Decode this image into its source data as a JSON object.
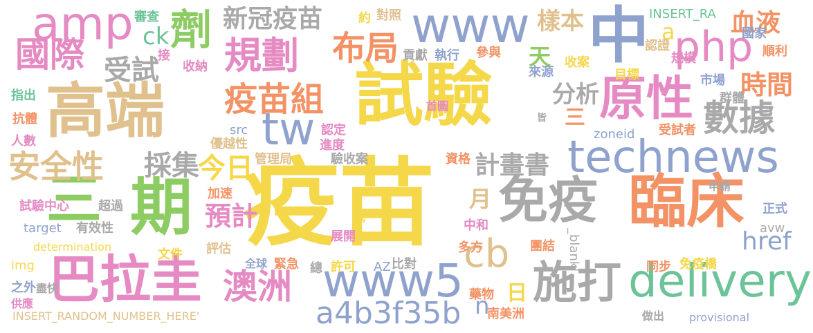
{
  "colors": {
    "yellow": "#f5d74a",
    "tan": "#e0c18e",
    "salmon": "#f39265",
    "green": "#8ccc62",
    "blue": "#8fa2cd",
    "pink": "#e58ac3",
    "gray": "#a9a9a9",
    "teal": "#6dc398"
  },
  "words": [
    {
      "text": "疫苗",
      "color": "yellow"
    },
    {
      "text": "試驗",
      "color": "yellow"
    },
    {
      "text": "高端",
      "color": "tan"
    },
    {
      "text": "臨床",
      "color": "salmon"
    },
    {
      "text": "免疫",
      "color": "gray"
    },
    {
      "text": "巴拉圭",
      "color": "pink"
    },
    {
      "text": "期",
      "color": "green"
    },
    {
      "text": "三",
      "color": "green"
    },
    {
      "text": "中",
      "color": "blue"
    },
    {
      "text": "原性",
      "color": "pink"
    },
    {
      "text": "technews",
      "color": "blue"
    },
    {
      "text": "施打",
      "color": "gray"
    },
    {
      "text": "delivery",
      "color": "teal"
    },
    {
      "text": "www5",
      "color": "blue"
    },
    {
      "text": "www",
      "color": "blue"
    },
    {
      "text": "amp",
      "color": "pink"
    },
    {
      "text": "php",
      "color": "pink"
    },
    {
      "text": "規劃",
      "color": "pink"
    },
    {
      "text": "劑",
      "color": "green"
    },
    {
      "text": "國際",
      "color": "pink"
    },
    {
      "text": "疫苗組",
      "color": "salmon"
    },
    {
      "text": "澳洲",
      "color": "pink"
    },
    {
      "text": "布局",
      "color": "salmon"
    },
    {
      "text": "安全性",
      "color": "tan"
    },
    {
      "text": "數據",
      "color": "gray"
    },
    {
      "text": "tw",
      "color": "blue"
    },
    {
      "text": "cb",
      "color": "tan"
    },
    {
      "text": "a4b3f35b",
      "color": "blue"
    },
    {
      "text": "新冠疫苗",
      "color": "gray"
    },
    {
      "text": "採集",
      "color": "gray"
    },
    {
      "text": "今日",
      "color": "yellow"
    },
    {
      "text": "計畫書",
      "color": "gray"
    },
    {
      "text": "樣本",
      "color": "tan"
    },
    {
      "text": "血液",
      "color": "salmon"
    },
    {
      "text": "時間",
      "color": "salmon"
    },
    {
      "text": "分析",
      "color": "gray"
    },
    {
      "text": "受試",
      "color": "gray"
    },
    {
      "text": "預計",
      "color": "pink"
    },
    {
      "text": "天",
      "color": "green"
    },
    {
      "text": "ck",
      "color": "teal"
    },
    {
      "text": "href",
      "color": "blue"
    },
    {
      "text": "a",
      "color": "yellow"
    },
    {
      "text": "三",
      "color": "salmon"
    },
    {
      "text": "月",
      "color": "tan"
    },
    {
      "text": "日",
      "color": "yellow"
    },
    {
      "text": "n",
      "color": "blue"
    },
    {
      "text": "INSERT_RANDOM_NUMBER_HERE'",
      "color": "tan"
    },
    {
      "text": "INSERT_RA",
      "color": "teal"
    },
    {
      "text": "determination",
      "color": "yellow"
    },
    {
      "text": "target",
      "color": "blue"
    },
    {
      "text": "provisional",
      "color": "blue"
    },
    {
      "text": "zoneid",
      "color": "blue"
    },
    {
      "text": "src",
      "color": "blue"
    },
    {
      "text": "img",
      "color": "yellow"
    },
    {
      "text": "avw",
      "color": "gray"
    },
    {
      "text": "_blank'",
      "color": "gray"
    },
    {
      "text": "AZ",
      "color": "blue"
    },
    {
      "text": "審查",
      "color": "teal"
    },
    {
      "text": "約",
      "color": "yellow"
    },
    {
      "text": "對照",
      "color": "tan"
    },
    {
      "text": "接",
      "color": "pink"
    },
    {
      "text": "收納",
      "color": "pink"
    },
    {
      "text": "貢獻",
      "color": "gray"
    },
    {
      "text": "執行",
      "color": "blue"
    },
    {
      "text": "參與",
      "color": "salmon"
    },
    {
      "text": "認證",
      "color": "tan"
    },
    {
      "text": "規模",
      "color": "pink"
    },
    {
      "text": "國家",
      "color": "blue"
    },
    {
      "text": "順利",
      "color": "salmon"
    },
    {
      "text": "來源",
      "color": "blue"
    },
    {
      "text": "收案",
      "color": "yellow"
    },
    {
      "text": "目標",
      "color": "yellow"
    },
    {
      "text": "市場",
      "color": "blue"
    },
    {
      "text": "群體",
      "color": "gray"
    },
    {
      "text": "指出",
      "color": "teal"
    },
    {
      "text": "首圖",
      "color": "pink"
    },
    {
      "text": "皆",
      "color": "gray"
    },
    {
      "text": "抗體",
      "color": "salmon"
    },
    {
      "text": "人數",
      "color": "pink"
    },
    {
      "text": "認定",
      "color": "pink"
    },
    {
      "text": "優越性",
      "color": "tan"
    },
    {
      "text": "進度",
      "color": "pink"
    },
    {
      "text": "受試者",
      "color": "salmon"
    },
    {
      "text": "管理局",
      "color": "tan"
    },
    {
      "text": "驗收案",
      "color": "gray"
    },
    {
      "text": "資格",
      "color": "salmon"
    },
    {
      "text": "加速",
      "color": "salmon"
    },
    {
      "text": "申請",
      "color": "gray"
    },
    {
      "text": "正式",
      "color": "blue"
    },
    {
      "text": "試驗中心",
      "color": "pink"
    },
    {
      "text": "超過",
      "color": "gray"
    },
    {
      "text": "有效性",
      "color": "gray"
    },
    {
      "text": "試",
      "color": "yellow"
    },
    {
      "text": "中和",
      "color": "pink"
    },
    {
      "text": "展開",
      "color": "pink"
    },
    {
      "text": "評估",
      "color": "tan"
    },
    {
      "text": "文件",
      "color": "yellow"
    },
    {
      "text": "多方",
      "color": "salmon"
    },
    {
      "text": "團結",
      "color": "salmon"
    },
    {
      "text": "全球",
      "color": "blue"
    },
    {
      "text": "緊急",
      "color": "salmon"
    },
    {
      "text": "總",
      "color": "gray"
    },
    {
      "text": "許可",
      "color": "yellow"
    },
    {
      "text": "比對",
      "color": "gray"
    },
    {
      "text": "同步",
      "color": "salmon"
    },
    {
      "text": "免疫橋",
      "color": "yellow"
    },
    {
      "text": "之外",
      "color": "blue"
    },
    {
      "text": "盡快",
      "color": "gray"
    },
    {
      "text": "供應",
      "color": "pink"
    },
    {
      "text": "藥物",
      "color": "salmon"
    },
    {
      "text": "南美洲",
      "color": "salmon"
    },
    {
      "text": "做出",
      "color": "gray"
    }
  ]
}
